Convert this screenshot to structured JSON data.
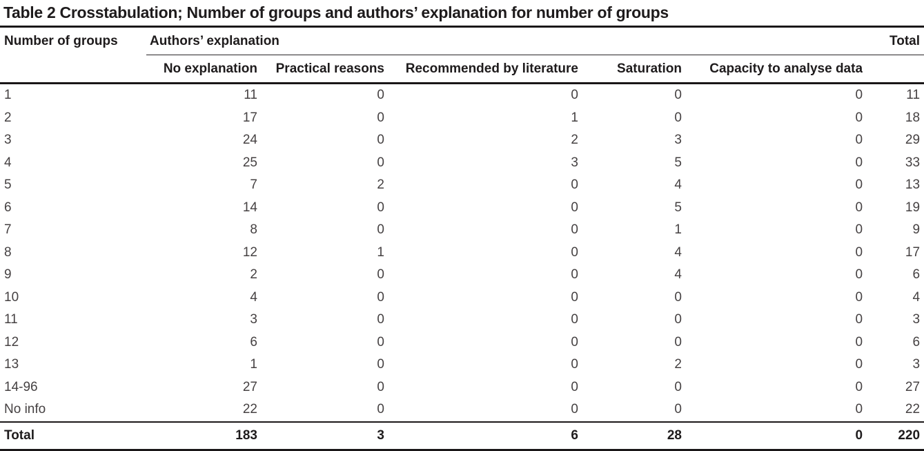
{
  "title": "Table 2 Crosstabulation; Number of groups and authors’ explanation for number of groups",
  "table": {
    "row_header": "Number of groups",
    "group_header": "Authors’ explanation",
    "total_header": "Total",
    "sub_headers": [
      "No explanation",
      "Practical reasons",
      "Recommended by literature",
      "Saturation",
      "Capacity to analyse data"
    ],
    "rows": [
      {
        "label": "1",
        "values": [
          "11",
          "0",
          "0",
          "0",
          "0"
        ],
        "total": "11"
      },
      {
        "label": "2",
        "values": [
          "17",
          "0",
          "1",
          "0",
          "0"
        ],
        "total": "18"
      },
      {
        "label": "3",
        "values": [
          "24",
          "0",
          "2",
          "3",
          "0"
        ],
        "total": "29"
      },
      {
        "label": "4",
        "values": [
          "25",
          "0",
          "3",
          "5",
          "0"
        ],
        "total": "33"
      },
      {
        "label": "5",
        "values": [
          "7",
          "2",
          "0",
          "4",
          "0"
        ],
        "total": "13"
      },
      {
        "label": "6",
        "values": [
          "14",
          "0",
          "0",
          "5",
          "0"
        ],
        "total": "19"
      },
      {
        "label": "7",
        "values": [
          "8",
          "0",
          "0",
          "1",
          "0"
        ],
        "total": "9"
      },
      {
        "label": "8",
        "values": [
          "12",
          "1",
          "0",
          "4",
          "0"
        ],
        "total": "17"
      },
      {
        "label": "9",
        "values": [
          "2",
          "0",
          "0",
          "4",
          "0"
        ],
        "total": "6"
      },
      {
        "label": "10",
        "values": [
          "4",
          "0",
          "0",
          "0",
          "0"
        ],
        "total": "4"
      },
      {
        "label": "11",
        "values": [
          "3",
          "0",
          "0",
          "0",
          "0"
        ],
        "total": "3"
      },
      {
        "label": "12",
        "values": [
          "6",
          "0",
          "0",
          "0",
          "0"
        ],
        "total": "6"
      },
      {
        "label": "13",
        "values": [
          "1",
          "0",
          "0",
          "2",
          "0"
        ],
        "total": "3"
      },
      {
        "label": "14-96",
        "values": [
          "27",
          "0",
          "0",
          "0",
          "0"
        ],
        "total": "27"
      },
      {
        "label": "No info",
        "values": [
          "22",
          "0",
          "0",
          "0",
          "0"
        ],
        "total": "22"
      }
    ],
    "total_row": {
      "label": "Total",
      "values": [
        "183",
        "3",
        "6",
        "28",
        "0"
      ],
      "total": "220"
    }
  }
}
